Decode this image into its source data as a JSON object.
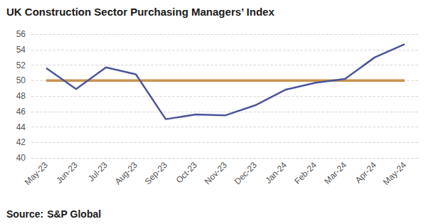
{
  "chart_data": {
    "type": "line",
    "title": "UK Construction Sector Purchasing Managers’ Index",
    "source_label": "Source:",
    "source": "S&P Global",
    "categories": [
      "May-23",
      "Jun-23",
      "Jul-23",
      "Aug-23",
      "Sep-23",
      "Oct-23",
      "Nov-23",
      "Dec-23",
      "Jan-24",
      "Feb-24",
      "Mar-24",
      "Apr-24",
      "May-24"
    ],
    "series": [
      {
        "color": "#4b559b",
        "values": [
          51.6,
          48.9,
          51.7,
          50.8,
          45.0,
          45.6,
          45.5,
          46.8,
          48.8,
          49.7,
          50.2,
          53.0,
          54.7
        ]
      },
      {
        "color": "#c8924f",
        "values": [
          50,
          50,
          50,
          50,
          50,
          50,
          50,
          50,
          50,
          50,
          50,
          50,
          50
        ]
      }
    ],
    "ylim": [
      40,
      56
    ],
    "yticks": [
      40,
      42,
      44,
      46,
      48,
      50,
      52,
      54,
      56
    ],
    "grid": true
  }
}
